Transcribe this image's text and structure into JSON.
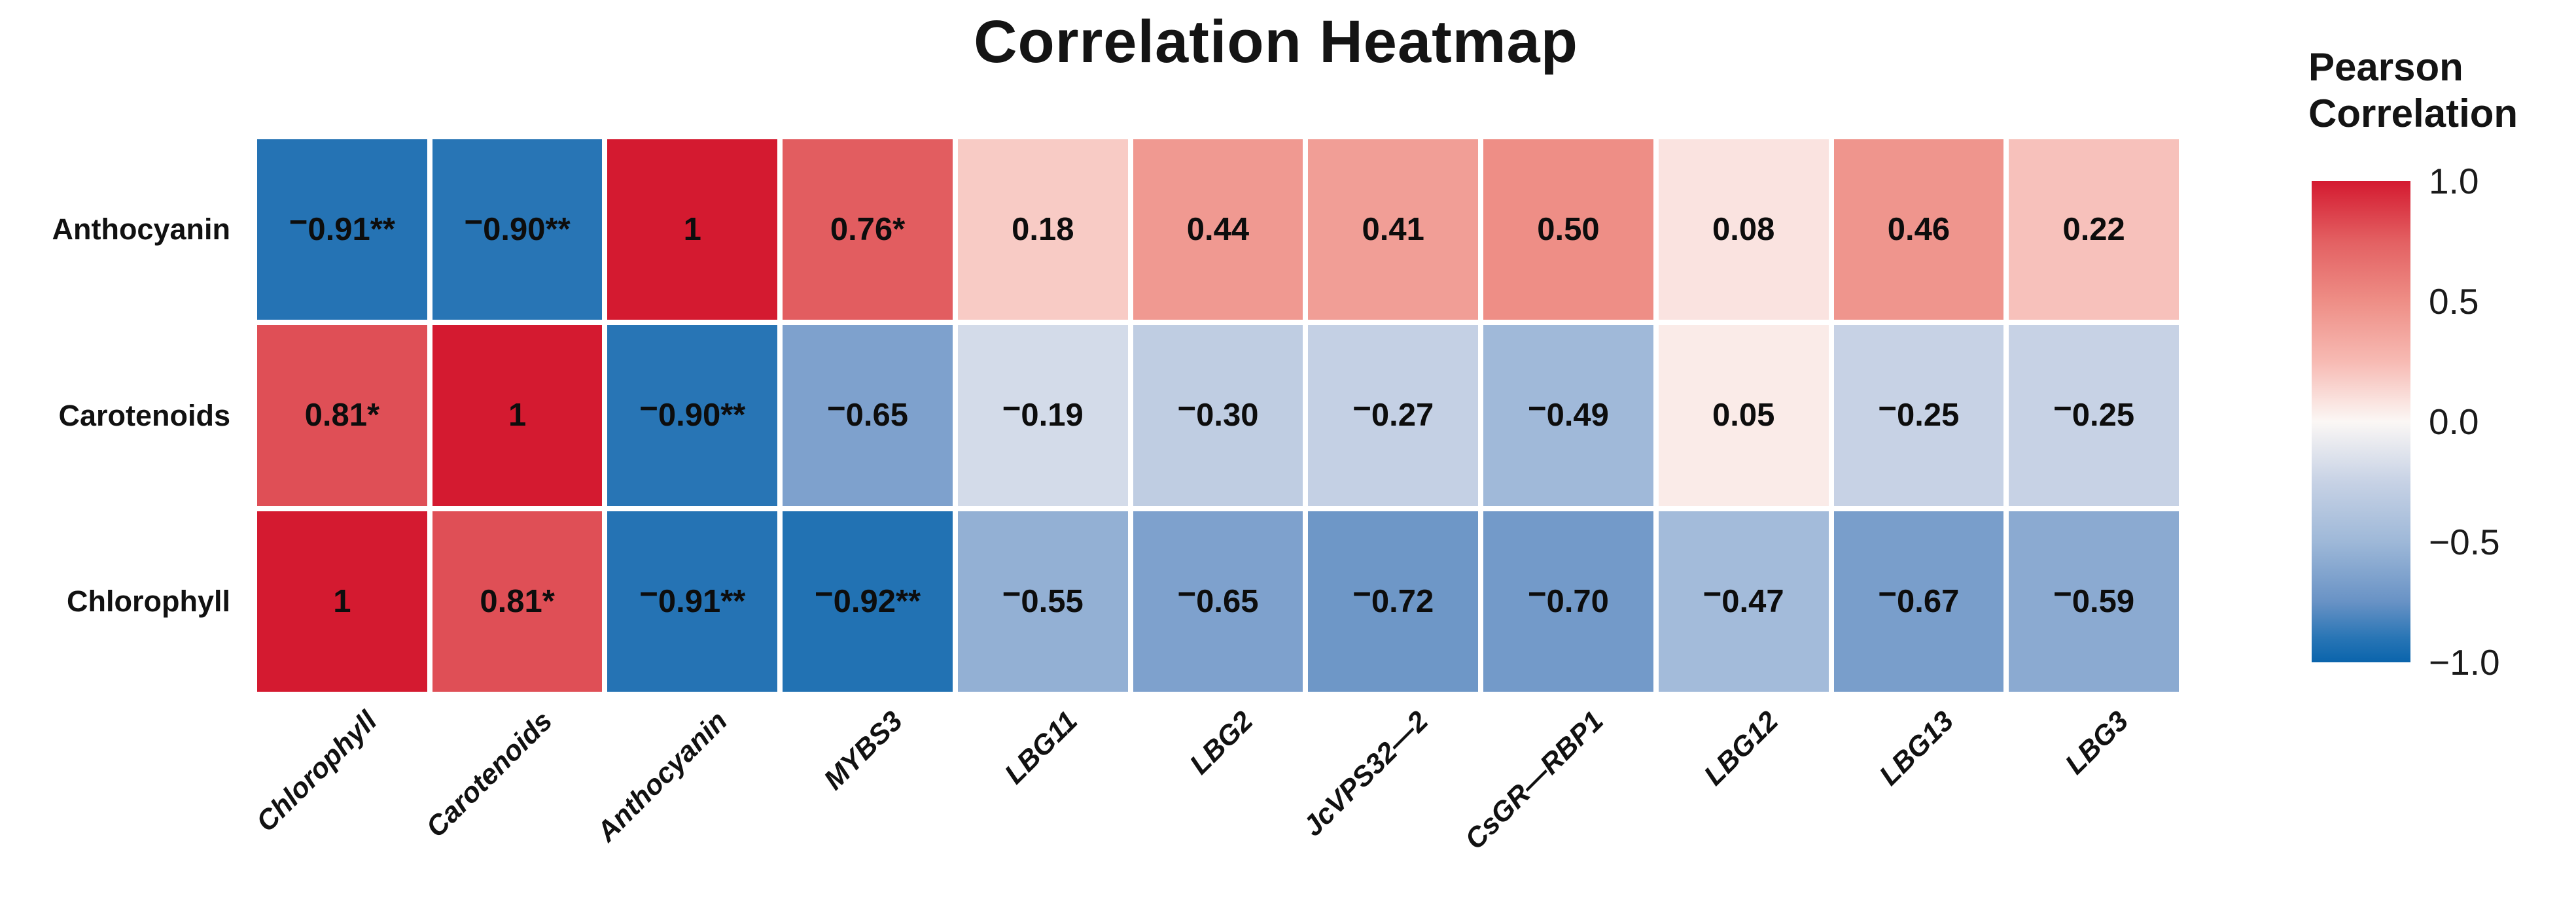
{
  "title": "Correlation Heatmap",
  "legend": {
    "title_line1": "Pearson",
    "title_line2": "Correlation",
    "ticks": [
      "1.0",
      "0.5",
      "0.0",
      "−0.5",
      "−1.0"
    ]
  },
  "chart_data": {
    "type": "heatmap",
    "title": "Correlation Heatmap",
    "rows": [
      "Anthocyanin",
      "Carotenoids",
      "Chlorophyll"
    ],
    "columns": [
      "Chlorophyll",
      "Carotenoids",
      "Anthocyanin",
      "MYBS3",
      "LBG11",
      "LBG2",
      "JcVPS32—2",
      "CsGR—RBP1",
      "LBG12",
      "LBG13",
      "LBG3"
    ],
    "values": [
      [
        -0.91,
        -0.9,
        1.0,
        0.76,
        0.18,
        0.44,
        0.41,
        0.5,
        0.08,
        0.46,
        0.22
      ],
      [
        0.81,
        1.0,
        -0.9,
        -0.65,
        -0.19,
        -0.3,
        -0.27,
        -0.49,
        0.05,
        -0.25,
        -0.25
      ],
      [
        1.0,
        0.81,
        -0.91,
        -0.92,
        -0.55,
        -0.65,
        -0.72,
        -0.7,
        -0.47,
        -0.67,
        -0.59
      ]
    ],
    "cell_labels": [
      [
        "−0.91**",
        "−0.90**",
        "1",
        "0.76*",
        "0.18",
        "0.44",
        "0.41",
        "0.50",
        "0.08",
        "0.46",
        "0.22"
      ],
      [
        "0.81*",
        "1",
        "−0.90**",
        "−0.65",
        "−0.19",
        "−0.30",
        "−0.27",
        "−0.49",
        "0.05",
        "−0.25",
        "−0.25"
      ],
      [
        "1",
        "0.81*",
        "−0.91**",
        "−0.92**",
        "−0.55",
        "−0.65",
        "−0.72",
        "−0.70",
        "−0.47",
        "−0.67",
        "−0.59"
      ]
    ],
    "colorbar": {
      "title": "Pearson Correlation",
      "min": -1.0,
      "max": 1.0,
      "tick_values": [
        1.0,
        0.5,
        0.0,
        -0.5,
        -1.0
      ]
    },
    "palette_stops": [
      {
        "v": -1.0,
        "c": "#0a64ac"
      },
      {
        "v": -0.9,
        "c": "#2875b5"
      },
      {
        "v": -0.75,
        "c": "#6892c5"
      },
      {
        "v": -0.5,
        "c": "#9eb8d8"
      },
      {
        "v": -0.25,
        "c": "#c7d2e5"
      },
      {
        "v": 0.0,
        "c": "#fbf7f5"
      },
      {
        "v": 0.25,
        "c": "#f7bab3"
      },
      {
        "v": 0.5,
        "c": "#ee8e86"
      },
      {
        "v": 0.75,
        "c": "#e36062"
      },
      {
        "v": 1.0,
        "c": "#d41a30"
      }
    ],
    "legend_position": "right",
    "grid": false
  }
}
